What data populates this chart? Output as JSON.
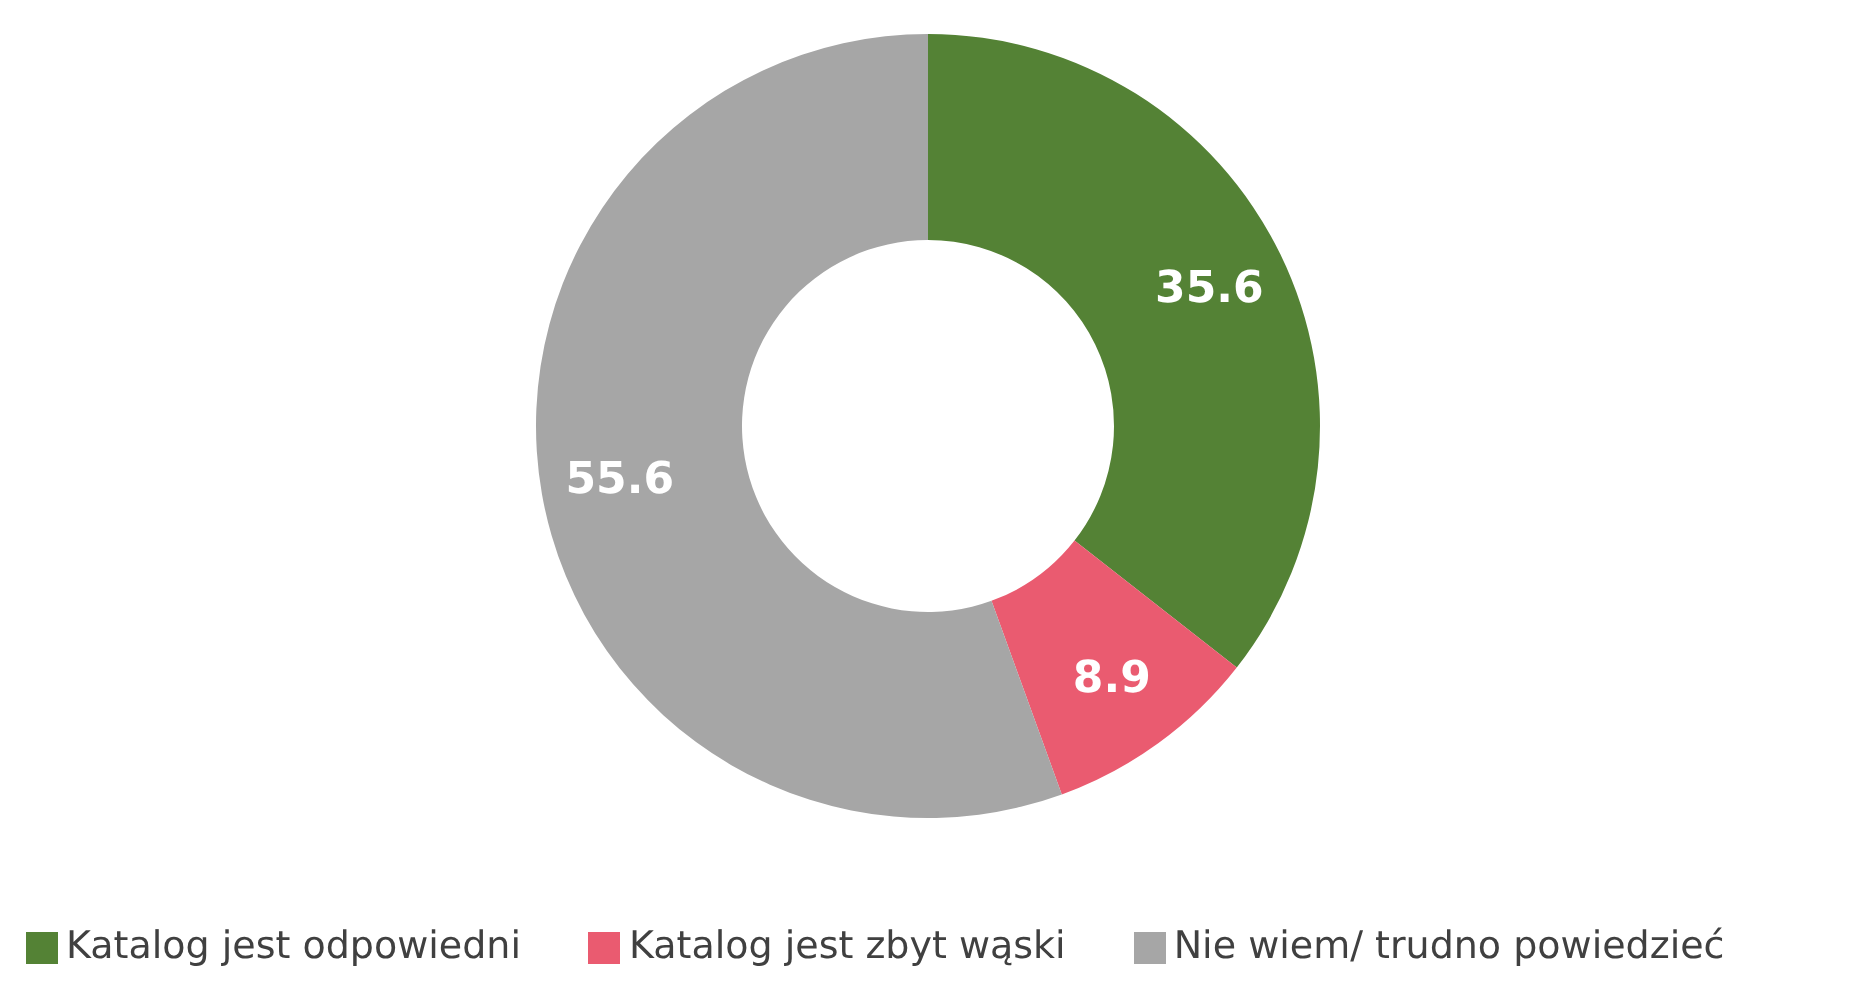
{
  "chart_data": {
    "type": "donut",
    "categories": [
      "Katalog jest odpowiedni",
      "Katalog jest zbyt wąski",
      "Nie wiem/ trudno powiedzieć"
    ],
    "values": [
      35.6,
      8.9,
      55.6
    ],
    "colors": [
      "#548235",
      "#ea5b70",
      "#a6a6a6"
    ],
    "data_labels": true,
    "legend": "bottom"
  }
}
